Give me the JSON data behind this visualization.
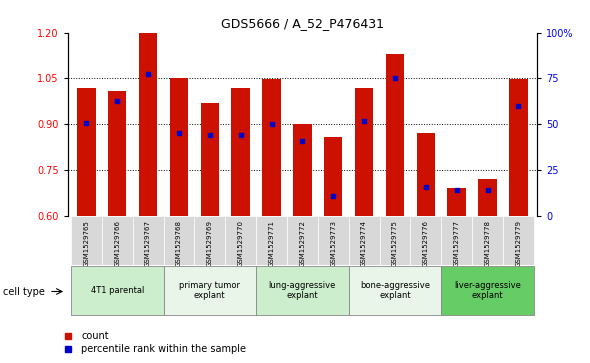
{
  "title": "GDS5666 / A_52_P476431",
  "samples": [
    "GSM1529765",
    "GSM1529766",
    "GSM1529767",
    "GSM1529768",
    "GSM1529769",
    "GSM1529770",
    "GSM1529771",
    "GSM1529772",
    "GSM1529773",
    "GSM1529774",
    "GSM1529775",
    "GSM1529776",
    "GSM1529777",
    "GSM1529778",
    "GSM1529779"
  ],
  "bar_values": [
    1.02,
    1.01,
    1.2,
    1.05,
    0.97,
    1.02,
    1.047,
    0.9,
    0.86,
    1.02,
    1.13,
    0.87,
    0.69,
    0.72,
    1.047
  ],
  "percentile_values": [
    0.905,
    0.975,
    1.065,
    0.87,
    0.865,
    0.865,
    0.9,
    0.845,
    0.665,
    0.91,
    1.05,
    0.695,
    0.685,
    0.685,
    0.96
  ],
  "bar_color": "#cc1100",
  "percentile_color": "#0000cc",
  "ylim_left": [
    0.6,
    1.2
  ],
  "ylim_right": [
    0,
    100
  ],
  "yticks_left": [
    0.6,
    0.75,
    0.9,
    1.05,
    1.2
  ],
  "yticks_right": [
    0,
    25,
    50,
    75,
    100
  ],
  "cell_groups": [
    {
      "label": "4T1 parental",
      "start": 0,
      "end": 3,
      "color": "#cceecc"
    },
    {
      "label": "primary tumor\nexplant",
      "start": 3,
      "end": 6,
      "color": "#e8f5e8"
    },
    {
      "label": "lung-aggressive\nexplant",
      "start": 6,
      "end": 9,
      "color": "#cceecc"
    },
    {
      "label": "bone-aggressive\nexplant",
      "start": 9,
      "end": 12,
      "color": "#e8f5e8"
    },
    {
      "label": "liver-aggressive\nexplant",
      "start": 12,
      "end": 15,
      "color": "#66cc66"
    }
  ],
  "legend_count_label": "count",
  "legend_percentile_label": "percentile rank within the sample",
  "cell_type_label": "cell type"
}
